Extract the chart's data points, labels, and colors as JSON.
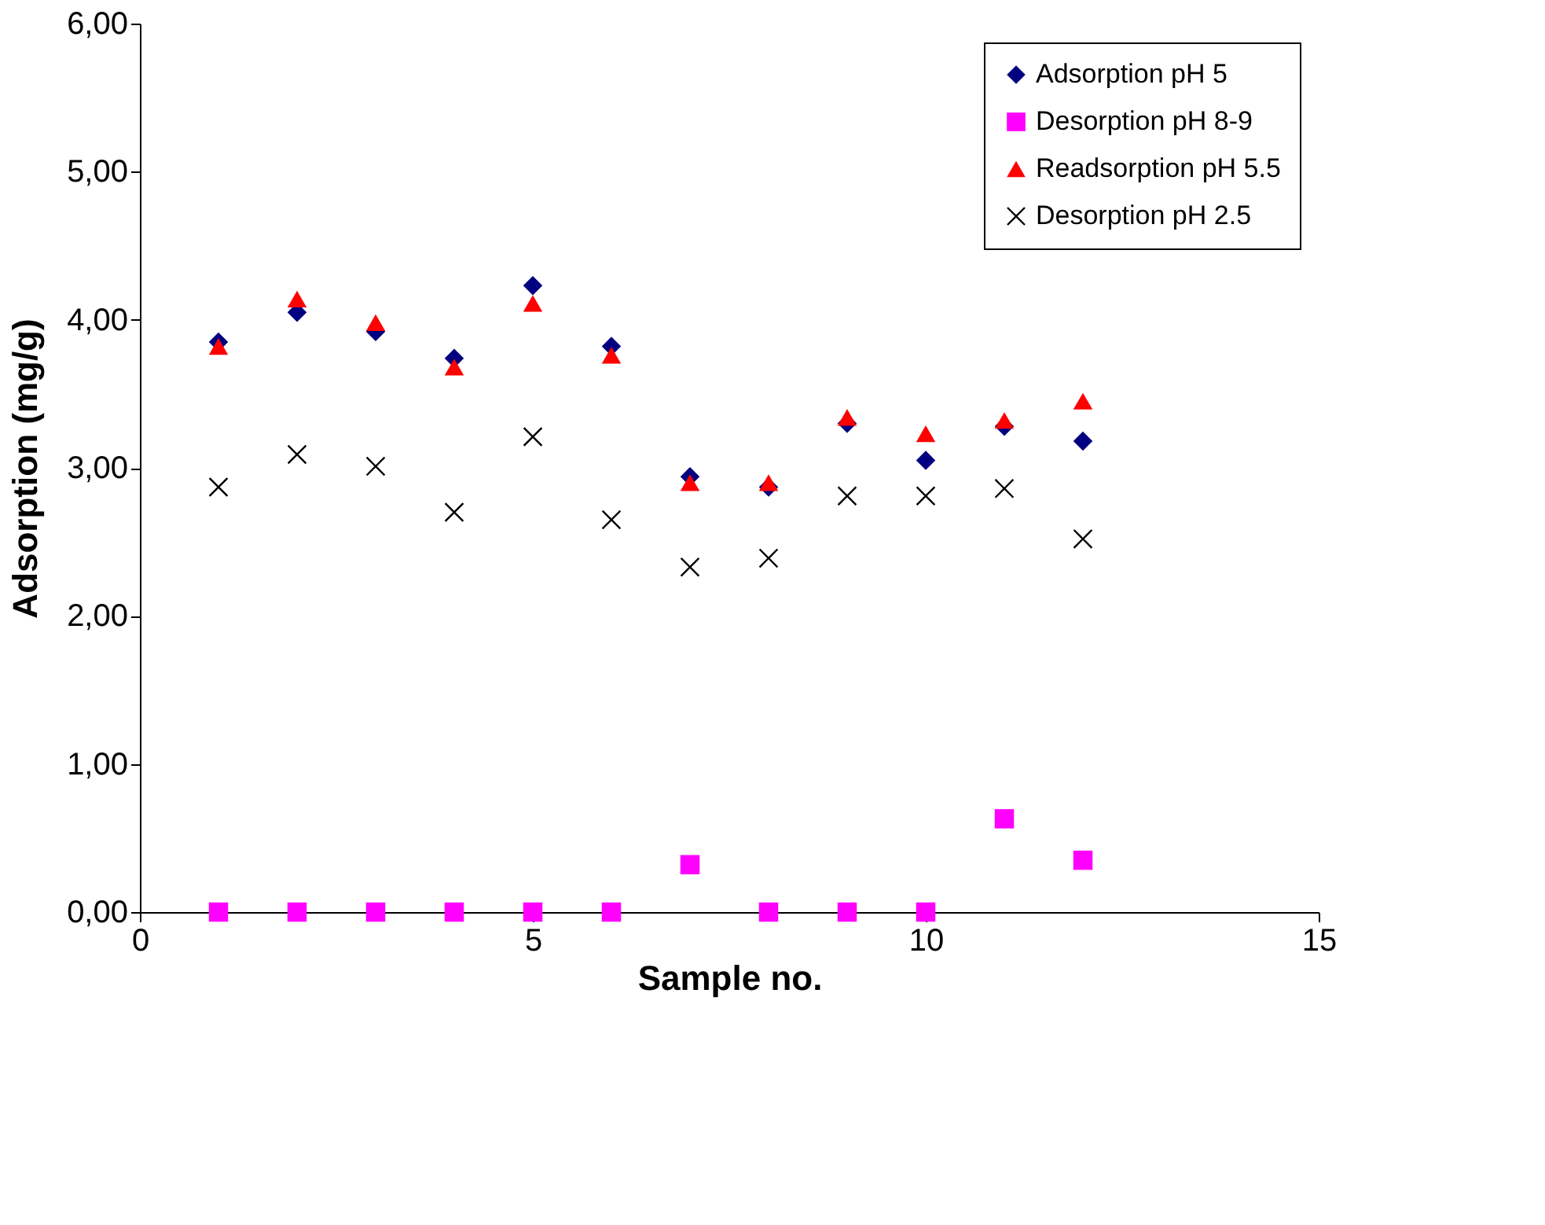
{
  "chart_data": {
    "type": "scatter",
    "xlabel": "Sample no.",
    "ylabel": "Adsorption (mg/g)",
    "x": [
      1,
      2,
      3,
      4,
      5,
      6,
      7,
      8,
      9,
      10,
      11,
      12
    ],
    "series": [
      {
        "name": "Adsorption pH 5",
        "color": "#000080",
        "marker": "diamond",
        "values": [
          3.85,
          4.05,
          3.92,
          3.74,
          4.23,
          3.82,
          2.94,
          2.87,
          3.3,
          3.05,
          3.28,
          3.18
        ]
      },
      {
        "name": "Desorption pH 8-9",
        "color": "#ff00ff",
        "marker": "square",
        "values": [
          0,
          0,
          0,
          0,
          0,
          0,
          0.32,
          0,
          0,
          0,
          0.63,
          0.35
        ]
      },
      {
        "name": "Readsorption pH 5.5",
        "color": "#ff0000",
        "marker": "triangle",
        "values": [
          3.82,
          4.14,
          3.98,
          3.68,
          4.11,
          3.76,
          2.9,
          2.9,
          3.34,
          3.23,
          3.32,
          3.45
        ]
      },
      {
        "name": "Desorption pH 2.5",
        "color": "#000000",
        "marker": "cross",
        "values": [
          2.87,
          3.09,
          3.01,
          2.7,
          3.21,
          2.65,
          2.33,
          2.39,
          2.81,
          2.81,
          2.86,
          2.52
        ]
      }
    ],
    "xlim": [
      0,
      15
    ],
    "xticks": [
      0,
      5,
      10,
      15
    ],
    "ylim": [
      0,
      6
    ],
    "yticks": [
      {
        "value": 0,
        "label": "0,00"
      },
      {
        "value": 1,
        "label": "1,00"
      },
      {
        "value": 2,
        "label": "2,00"
      },
      {
        "value": 3,
        "label": "3,00"
      },
      {
        "value": 4,
        "label": "4,00"
      },
      {
        "value": 5,
        "label": "5,00"
      },
      {
        "value": 6,
        "label": "6,00"
      }
    ],
    "legend": "top right",
    "grid": false
  }
}
